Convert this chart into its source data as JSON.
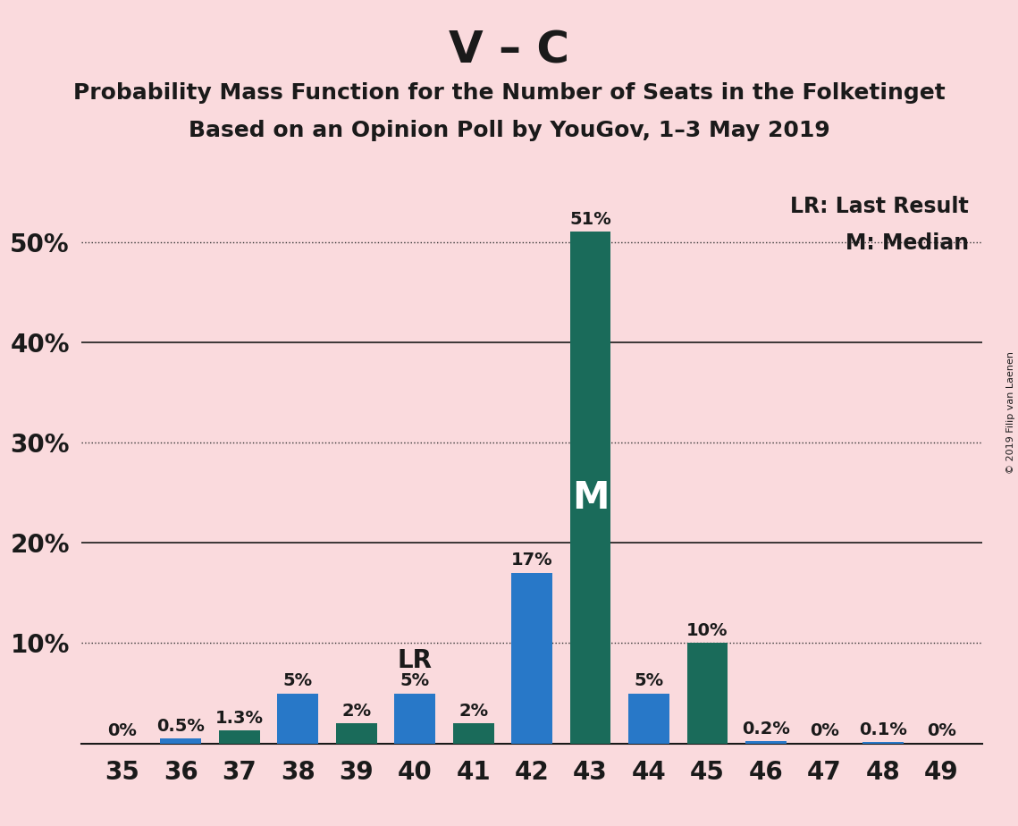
{
  "title1": "V – C",
  "title2": "Probability Mass Function for the Number of Seats in the Folketinget",
  "title3": "Based on an Opinion Poll by YouGov, 1–3 May 2019",
  "copyright": "© 2019 Filip van Laenen",
  "seats": [
    35,
    36,
    37,
    38,
    39,
    40,
    41,
    42,
    43,
    44,
    45,
    46,
    47,
    48,
    49
  ],
  "values": [
    0.0,
    0.5,
    1.3,
    5.0,
    2.0,
    5.0,
    2.0,
    17.0,
    51.0,
    5.0,
    10.0,
    0.2,
    0.0,
    0.1,
    0.0
  ],
  "colors": [
    "#2878C8",
    "#2878C8",
    "#1A6B5A",
    "#2878C8",
    "#1A6B5A",
    "#2878C8",
    "#1A6B5A",
    "#2878C8",
    "#1A6B5A",
    "#2878C8",
    "#1A6B5A",
    "#2878C8",
    "#2878C8",
    "#2878C8",
    "#2878C8"
  ],
  "labels": [
    "0%",
    "0.5%",
    "1.3%",
    "5%",
    "2%",
    "5%",
    "2%",
    "17%",
    "51%",
    "5%",
    "10%",
    "0.2%",
    "0%",
    "0.1%",
    "0%"
  ],
  "v_color": "#2878C8",
  "c_color": "#1A6B5A",
  "background_color": "#FADADD",
  "bar_width": 0.7,
  "ylim": [
    0,
    56
  ],
  "yticks": [
    10,
    20,
    30,
    40,
    50
  ],
  "ytick_labels": [
    "10%",
    "20%",
    "30%",
    "40%",
    "50%"
  ],
  "lr_seat_idx": 5,
  "lr_seat": 40,
  "lr_value": 5.0,
  "median_seat_idx": 8,
  "median_seat": 43,
  "median_value": 51.0,
  "legend_lr": "LR: Last Result",
  "legend_m": "M: Median",
  "solid_grid": [
    20,
    40
  ],
  "dotted_grid": [
    10,
    30,
    50
  ],
  "label_fontsize": 14,
  "tick_fontsize": 20,
  "title1_fontsize": 36,
  "title2_fontsize": 18,
  "title3_fontsize": 18,
  "legend_fontsize": 17
}
